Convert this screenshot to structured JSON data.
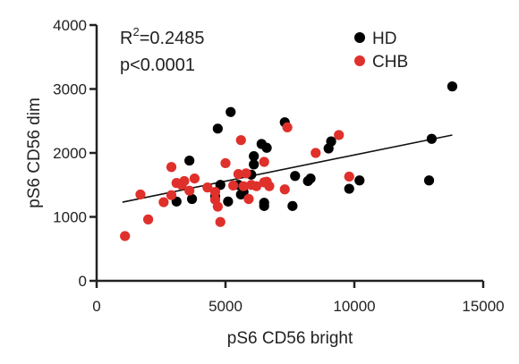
{
  "chart_data": {
    "type": "scatter",
    "xlabel": "pS6 CD56 bright",
    "ylabel": "pS6 CD56 dim",
    "xlim": [
      0,
      15000
    ],
    "ylim": [
      0,
      4000
    ],
    "xticks": [
      0,
      5000,
      10000,
      15000
    ],
    "yticks": [
      0,
      1000,
      2000,
      3000,
      4000
    ],
    "grid": false,
    "legend_position": "top-right",
    "annotations": {
      "r2_prefix": "R",
      "r2_sup": "2",
      "r2_value": "=0.2485",
      "p_value": "p<0.0001"
    },
    "regression": {
      "x": [
        1000,
        13800
      ],
      "y": [
        1230,
        2280
      ]
    },
    "series": [
      {
        "name": "HD",
        "color": "#000000",
        "points": [
          [
            3100,
            1240
          ],
          [
            3600,
            1880
          ],
          [
            3700,
            1280
          ],
          [
            4600,
            1320
          ],
          [
            4700,
            2380
          ],
          [
            4800,
            1500
          ],
          [
            5100,
            1240
          ],
          [
            5200,
            2640
          ],
          [
            5500,
            1500
          ],
          [
            5600,
            1350
          ],
          [
            5700,
            1390
          ],
          [
            6000,
            1660
          ],
          [
            6100,
            1820
          ],
          [
            6100,
            1950
          ],
          [
            6400,
            2140
          ],
          [
            6500,
            1170
          ],
          [
            6500,
            1220
          ],
          [
            6600,
            2080
          ],
          [
            7300,
            2480
          ],
          [
            7600,
            1170
          ],
          [
            7700,
            1640
          ],
          [
            8200,
            1560
          ],
          [
            8300,
            1600
          ],
          [
            9000,
            2070
          ],
          [
            9100,
            2180
          ],
          [
            9800,
            1440
          ],
          [
            10200,
            1570
          ],
          [
            12900,
            1570
          ],
          [
            13000,
            2220
          ],
          [
            13800,
            3040
          ]
        ]
      },
      {
        "name": "CHB",
        "color": "#e0302b",
        "points": [
          [
            1100,
            700
          ],
          [
            1700,
            1350
          ],
          [
            2000,
            960
          ],
          [
            2600,
            1230
          ],
          [
            2900,
            1780
          ],
          [
            2900,
            1340
          ],
          [
            3100,
            1530
          ],
          [
            3300,
            1500
          ],
          [
            3400,
            1560
          ],
          [
            3600,
            1410
          ],
          [
            3800,
            1600
          ],
          [
            4300,
            1460
          ],
          [
            4600,
            1270
          ],
          [
            4600,
            1390
          ],
          [
            4700,
            1160
          ],
          [
            4800,
            920
          ],
          [
            5000,
            1840
          ],
          [
            5300,
            1490
          ],
          [
            5500,
            1670
          ],
          [
            5600,
            2200
          ],
          [
            5700,
            1480
          ],
          [
            5800,
            1680
          ],
          [
            5900,
            1280
          ],
          [
            6000,
            1500
          ],
          [
            6200,
            1480
          ],
          [
            6500,
            1860
          ],
          [
            6500,
            1540
          ],
          [
            6600,
            1550
          ],
          [
            6700,
            1480
          ],
          [
            7300,
            1430
          ],
          [
            7400,
            2400
          ],
          [
            8500,
            2000
          ],
          [
            9400,
            2280
          ],
          [
            9800,
            1630
          ]
        ]
      }
    ]
  }
}
